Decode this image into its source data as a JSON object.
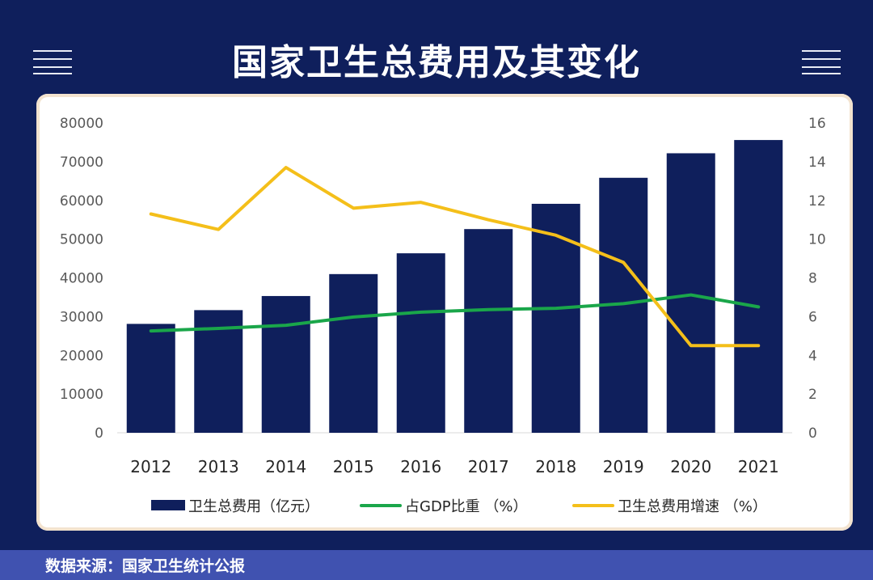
{
  "title": "国家卫生总费用及其变化",
  "source": "数据来源：国家卫生统计公报",
  "chart_data": {
    "type": "bar",
    "categories": [
      "2012",
      "2013",
      "2014",
      "2015",
      "2016",
      "2017",
      "2018",
      "2019",
      "2020",
      "2021"
    ],
    "series": [
      {
        "name": "卫生总费用（亿元）",
        "type": "bar",
        "axis": "left",
        "color": "#0f1f5c",
        "values": [
          28119,
          31669,
          35312,
          40975,
          46345,
          52598,
          59122,
          65841,
          72175,
          75594
        ]
      },
      {
        "name": "占GDP比重 （%）",
        "type": "line",
        "axis": "right",
        "color": "#1aa64a",
        "values": [
          5.26,
          5.39,
          5.55,
          5.98,
          6.23,
          6.36,
          6.43,
          6.67,
          7.12,
          6.5
        ]
      },
      {
        "name": "卫生总费用增速 （%）",
        "type": "line",
        "axis": "right",
        "color": "#f4bf1a",
        "values": [
          11.3,
          10.5,
          13.7,
          11.6,
          11.9,
          11.0,
          10.2,
          8.8,
          4.5,
          4.5
        ]
      }
    ],
    "y_left": {
      "ylim": [
        0,
        80000
      ],
      "ticks": [
        "0",
        "10000",
        "20000",
        "30000",
        "40000",
        "50000",
        "60000",
        "70000",
        "80000"
      ]
    },
    "y_right": {
      "ylim": [
        0,
        16
      ],
      "ticks": [
        "0",
        "2",
        "4",
        "6",
        "8",
        "10",
        "12",
        "14",
        "16"
      ]
    },
    "grid": false,
    "legend": "bottom"
  }
}
